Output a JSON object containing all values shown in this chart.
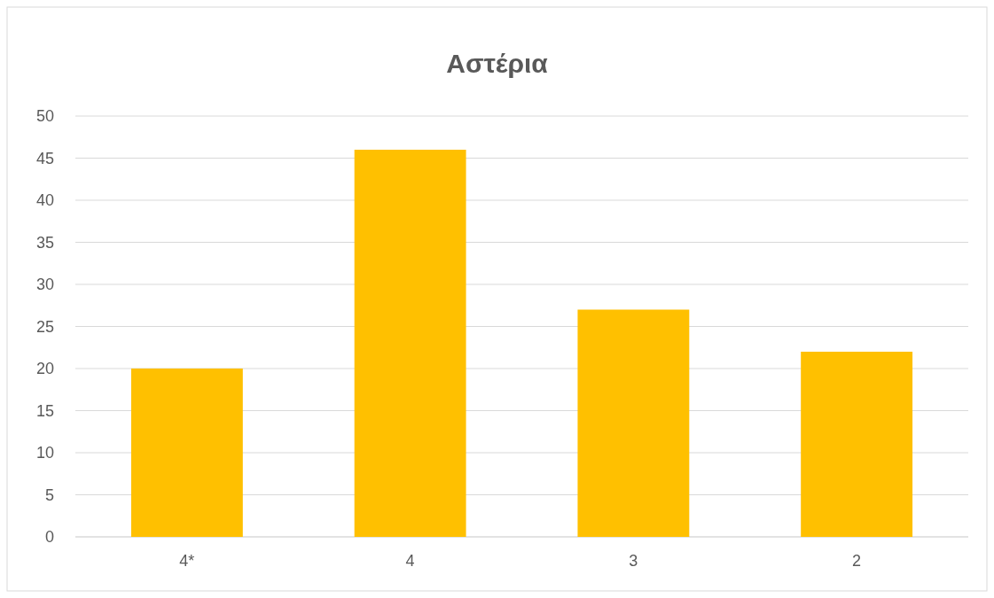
{
  "chart_data": {
    "type": "bar",
    "title": "Αστέρια",
    "categories": [
      "4*",
      "4",
      "3",
      "2"
    ],
    "values": [
      20,
      46,
      27,
      22
    ],
    "color": "#ffc000",
    "ylim": [
      0,
      50
    ],
    "yticks": [
      0,
      5,
      10,
      15,
      20,
      25,
      30,
      35,
      40,
      45,
      50
    ],
    "grid": "y"
  }
}
